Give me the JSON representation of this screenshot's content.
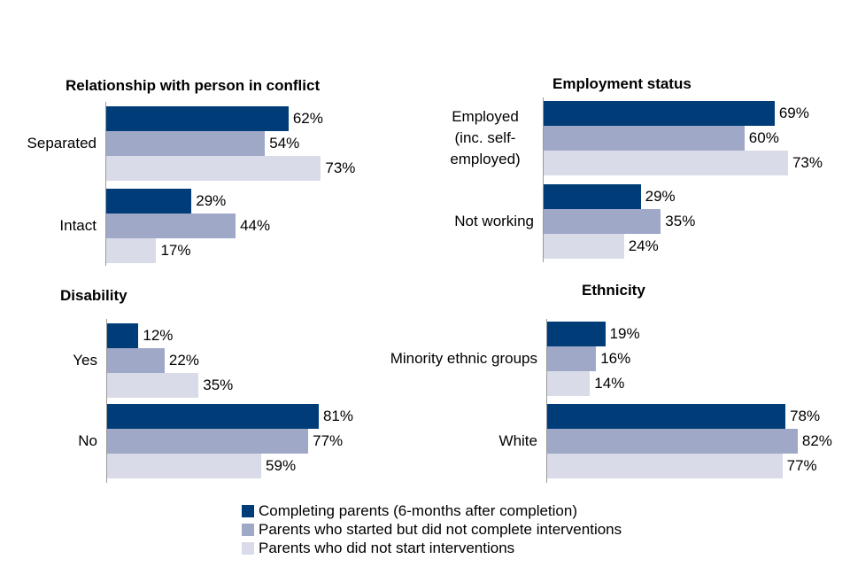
{
  "colors": {
    "completing": "#003D78",
    "started": "#A0A8C8",
    "not_started": "#D9DCE8"
  },
  "chart_data": [
    {
      "type": "bar",
      "orientation": "horizontal",
      "title": "Relationship with person in conflict",
      "categories": [
        "Separated",
        "Intact"
      ],
      "series": [
        {
          "name": "Completing parents (6-months after completion)",
          "values": [
            62,
            29
          ]
        },
        {
          "name": "Parents who started but did not complete interventions",
          "values": [
            54,
            44
          ]
        },
        {
          "name": "Parents who did not start interventions",
          "values": [
            73,
            17
          ]
        }
      ]
    },
    {
      "type": "bar",
      "orientation": "horizontal",
      "title": "Employment status",
      "categories": [
        "Employed (inc. self-employed)",
        "Not working"
      ],
      "series": [
        {
          "name": "Completing parents (6-months after completion)",
          "values": [
            69,
            29
          ]
        },
        {
          "name": "Parents who started but did not complete interventions",
          "values": [
            60,
            35
          ]
        },
        {
          "name": "Parents who did not start interventions",
          "values": [
            73,
            24
          ]
        }
      ]
    },
    {
      "type": "bar",
      "orientation": "horizontal",
      "title": "Disability",
      "categories": [
        "Yes",
        "No"
      ],
      "series": [
        {
          "name": "Completing parents (6-months after completion)",
          "values": [
            12,
            81
          ]
        },
        {
          "name": "Parents who started but did not complete interventions",
          "values": [
            22,
            77
          ]
        },
        {
          "name": "Parents who did not start interventions",
          "values": [
            35,
            59
          ]
        }
      ]
    },
    {
      "type": "bar",
      "orientation": "horizontal",
      "title": "Ethnicity",
      "categories": [
        "Minority ethnic groups",
        "White"
      ],
      "series": [
        {
          "name": "Completing parents (6-months after completion)",
          "values": [
            19,
            78
          ]
        },
        {
          "name": "Parents who started but did not complete interventions",
          "values": [
            16,
            82
          ]
        },
        {
          "name": "Parents who did not start interventions",
          "values": [
            14,
            77
          ]
        }
      ]
    }
  ],
  "legend": {
    "placement": "bottom",
    "items": [
      "Completing parents (6-months after completion)",
      "Parents who started but did not complete interventions",
      "Parents who did not start interventions"
    ]
  },
  "value_suffix": "%"
}
